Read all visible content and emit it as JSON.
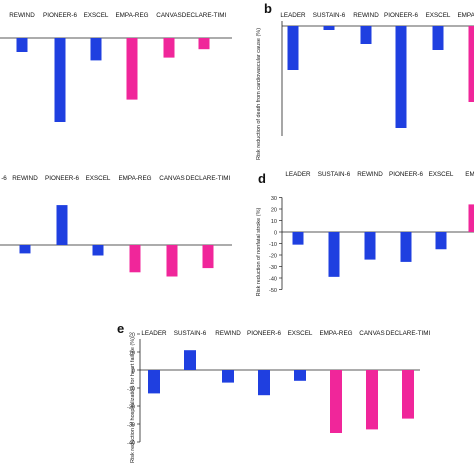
{
  "colors": {
    "blue": "#1f3fe0",
    "pink": "#f0269a",
    "axis": "#222222"
  },
  "chart_data": [
    {
      "type": "bar",
      "panel": "a",
      "panel_label": "",
      "ylabel": "",
      "categories": [
        "",
        "REWIND",
        "PIONEER-6",
        "EXSCEL",
        "EMPA-REG",
        "CANVAS",
        "DECLARE-TIMI"
      ],
      "values": [
        0,
        -5,
        -30,
        -8,
        -22,
        -7,
        -4
      ],
      "colors": [
        "blue",
        "blue",
        "blue",
        "blue",
        "pink",
        "pink",
        "pink"
      ],
      "yticks": [],
      "ylim": [
        -35,
        5
      ],
      "grid": false
    },
    {
      "type": "bar",
      "panel": "b",
      "panel_label": "b",
      "ylabel": "Risk reduction of death from cardiovascular cause (%)",
      "categories": [
        "LEADER",
        "SUSTAIN-6",
        "REWIND",
        "PIONEER-6",
        "EXSCEL",
        "EMPA-REG"
      ],
      "values": [
        -22,
        -2,
        -9,
        -51,
        -12,
        -38
      ],
      "colors": [
        "blue",
        "blue",
        "blue",
        "blue",
        "blue",
        "pink"
      ],
      "yticks": [],
      "ylim": [
        -55,
        5
      ],
      "grid": false
    },
    {
      "type": "bar",
      "panel": "c",
      "panel_label": "",
      "ylabel": "",
      "categories": [
        "-6",
        "REWIND",
        "PIONEER-6",
        "EXSCEL",
        "EMPA-REG",
        "CANVAS",
        "DECLARE-TIMI"
      ],
      "values": [
        0,
        -4,
        19,
        -5,
        -13,
        -15,
        -11
      ],
      "colors": [
        "blue",
        "blue",
        "blue",
        "blue",
        "pink",
        "pink",
        "pink"
      ],
      "yticks": [],
      "ylim": [
        -20,
        25
      ],
      "grid": false
    },
    {
      "type": "bar",
      "panel": "d",
      "panel_label": "d",
      "ylabel": "Risk reduction of nonfatal stroke (%)",
      "categories": [
        "LEADER",
        "SUSTAIN-6",
        "REWIND",
        "PIONEER-6",
        "EXSCEL",
        "EMPA"
      ],
      "values": [
        -11,
        -39,
        -24,
        -26,
        -15,
        24
      ],
      "colors": [
        "blue",
        "blue",
        "blue",
        "blue",
        "blue",
        "pink"
      ],
      "yticks": [
        30,
        20,
        10,
        0,
        -10,
        -20,
        -30,
        -40,
        -50
      ],
      "ylim": [
        -50,
        30
      ],
      "grid": false
    },
    {
      "type": "bar",
      "panel": "e",
      "panel_label": "e",
      "ylabel": "Risk reduction of hospitalization for heart failure (%)",
      "categories": [
        "LEADER",
        "SUSTAIN-6",
        "REWIND",
        "PIONEER-6",
        "EXSCEL",
        "EMPA-REG",
        "CANVAS",
        "DECLARE-TIMI"
      ],
      "values": [
        -13,
        11,
        -7,
        -14,
        -6,
        -35,
        -33,
        -27
      ],
      "colors": [
        "blue",
        "blue",
        "blue",
        "blue",
        "blue",
        "pink",
        "pink",
        "pink"
      ],
      "yticks": [
        20,
        10,
        0,
        -10,
        -20,
        -30,
        -40
      ],
      "ylim": [
        -45,
        20
      ],
      "grid": false
    }
  ]
}
